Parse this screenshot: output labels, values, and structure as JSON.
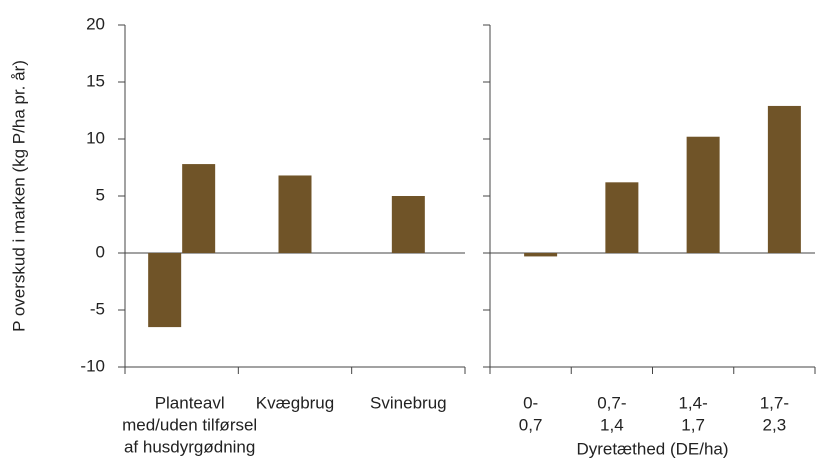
{
  "chart_data": [
    {
      "type": "bar",
      "y_label": "P overskud i marken (kg P/ha pr. år)",
      "categories": [
        [
          "Planteavl",
          "med/uden tilførsel",
          "af husdyrgødning"
        ],
        [
          "Kvægbrug"
        ],
        [
          "Svinebrug"
        ]
      ],
      "values": [
        [
          -6.5,
          7.8
        ],
        [
          6.8
        ],
        [
          5.0
        ]
      ],
      "color": "#705428",
      "ylim": [
        -10,
        20
      ],
      "yticks": [
        -10,
        -5,
        0,
        5,
        10,
        15,
        20
      ]
    },
    {
      "type": "bar",
      "x_label": "Dyretæthed (DE/ha)",
      "categories": [
        [
          "0-",
          "0,7"
        ],
        [
          "0,7-",
          "1,4"
        ],
        [
          "1,4-",
          "1,7"
        ],
        [
          "1,7-",
          "2,3"
        ]
      ],
      "values": [
        -0.3,
        6.2,
        10.2,
        12.9
      ],
      "color": "#705428",
      "ylim": [
        -10,
        20
      ],
      "yticks": [
        -10,
        -5,
        0,
        5,
        10,
        15,
        20
      ]
    }
  ]
}
